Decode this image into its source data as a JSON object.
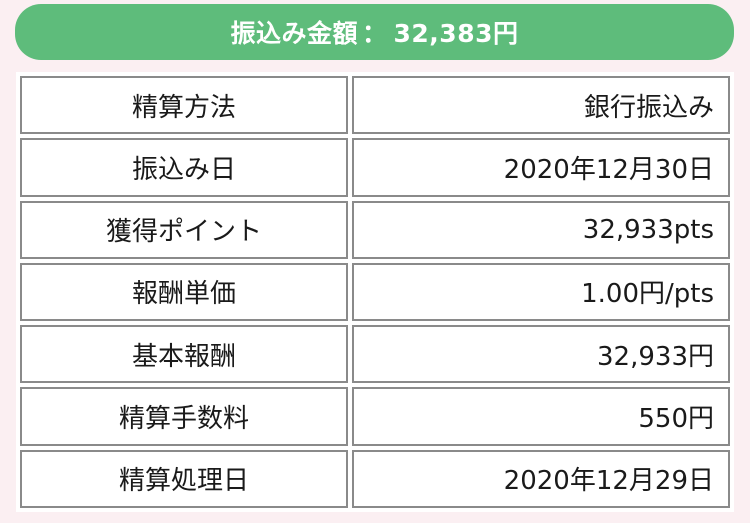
{
  "banner": {
    "label": "振込み金額",
    "separator": "：",
    "amount": "32,383円",
    "color": "#5ebc7b"
  },
  "rows": [
    {
      "label": "精算方法",
      "value": "銀行振込み"
    },
    {
      "label": "振込み日",
      "value": "2020年12月30日"
    },
    {
      "label": "獲得ポイント",
      "value": "32,933pts"
    },
    {
      "label": "報酬単価",
      "value": "1.00円/pts"
    },
    {
      "label": "基本報酬",
      "value": "32,933円"
    },
    {
      "label": "精算手数料",
      "value": "550円"
    },
    {
      "label": "精算処理日",
      "value": "2020年12月29日"
    }
  ]
}
